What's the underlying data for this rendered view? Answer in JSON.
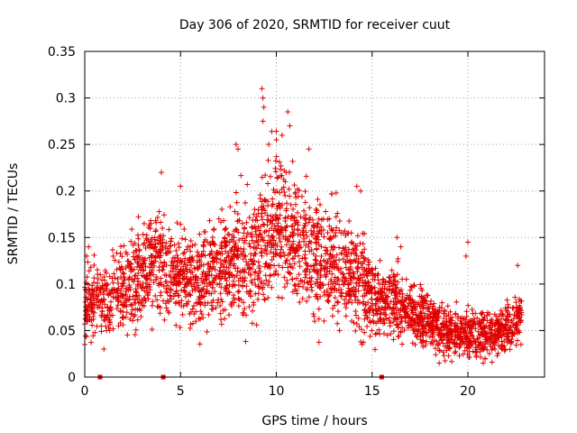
{
  "chart_data": {
    "type": "scatter",
    "title": "Day 306 of 2020, SRMTID for receiver cuut",
    "xlabel": "GPS time / hours",
    "ylabel": "SRMTID / TECUs",
    "xlim": [
      0,
      24
    ],
    "ylim": [
      0,
      0.35
    ],
    "grid": true,
    "marker": "+",
    "color": "#e00000",
    "x_ticks": [
      {
        "value": 0,
        "label": "0"
      },
      {
        "value": 5,
        "label": "5"
      },
      {
        "value": 10,
        "label": "10"
      },
      {
        "value": 15,
        "label": "15"
      },
      {
        "value": 20,
        "label": "20"
      }
    ],
    "y_ticks": [
      {
        "value": 0,
        "label": "0"
      },
      {
        "value": 0.05,
        "label": "0.05"
      },
      {
        "value": 0.1,
        "label": "0.1"
      },
      {
        "value": 0.15,
        "label": "0.15"
      },
      {
        "value": 0.2,
        "label": "0.2"
      },
      {
        "value": 0.25,
        "label": "0.25"
      },
      {
        "value": 0.3,
        "label": "0.3"
      },
      {
        "value": 0.35,
        "label": "0.35"
      }
    ],
    "baseline_markers": [
      0.8,
      4.1,
      15.5
    ],
    "envelope": {
      "hours": [
        0,
        0.5,
        1,
        1.5,
        2,
        2.5,
        3,
        3.5,
        4,
        4.5,
        5,
        5.5,
        6,
        6.5,
        7,
        7.5,
        8,
        8.5,
        9,
        9.5,
        10,
        10.5,
        11,
        11.5,
        12,
        12.5,
        13,
        13.5,
        14,
        14.5,
        15,
        15.5,
        16,
        16.5,
        17,
        17.5,
        18,
        18.5,
        19,
        19.5,
        20,
        20.5,
        21,
        21.5,
        22,
        22.5,
        22.8
      ],
      "center": [
        0.08,
        0.085,
        0.08,
        0.09,
        0.095,
        0.105,
        0.11,
        0.12,
        0.12,
        0.11,
        0.11,
        0.105,
        0.1,
        0.11,
        0.115,
        0.115,
        0.13,
        0.12,
        0.14,
        0.16,
        0.165,
        0.155,
        0.15,
        0.14,
        0.135,
        0.125,
        0.12,
        0.115,
        0.11,
        0.1,
        0.085,
        0.08,
        0.085,
        0.075,
        0.07,
        0.065,
        0.06,
        0.055,
        0.05,
        0.05,
        0.045,
        0.045,
        0.045,
        0.05,
        0.05,
        0.055,
        0.07
      ],
      "spread": [
        0.03,
        0.03,
        0.03,
        0.035,
        0.035,
        0.04,
        0.04,
        0.045,
        0.045,
        0.04,
        0.04,
        0.04,
        0.04,
        0.04,
        0.045,
        0.045,
        0.055,
        0.05,
        0.06,
        0.065,
        0.065,
        0.06,
        0.06,
        0.055,
        0.055,
        0.05,
        0.05,
        0.045,
        0.045,
        0.04,
        0.035,
        0.03,
        0.03,
        0.025,
        0.025,
        0.025,
        0.022,
        0.022,
        0.02,
        0.02,
        0.02,
        0.02,
        0.02,
        0.02,
        0.02,
        0.022,
        0.025
      ],
      "samples_per_hour": 130
    },
    "outliers": [
      {
        "x": 9.25,
        "y": 0.31
      },
      {
        "x": 9.3,
        "y": 0.3
      },
      {
        "x": 9.35,
        "y": 0.29
      },
      {
        "x": 9.3,
        "y": 0.275
      },
      {
        "x": 10.6,
        "y": 0.285
      },
      {
        "x": 10.7,
        "y": 0.27
      },
      {
        "x": 10.3,
        "y": 0.26
      },
      {
        "x": 10.0,
        "y": 0.255
      },
      {
        "x": 7.9,
        "y": 0.25
      },
      {
        "x": 8.0,
        "y": 0.245
      },
      {
        "x": 4.0,
        "y": 0.22
      },
      {
        "x": 11.7,
        "y": 0.245
      },
      {
        "x": 20.0,
        "y": 0.145
      },
      {
        "x": 19.9,
        "y": 0.13
      },
      {
        "x": 22.6,
        "y": 0.12
      },
      {
        "x": 3.1,
        "y": 0.165
      },
      {
        "x": 5.0,
        "y": 0.205
      },
      {
        "x": 14.2,
        "y": 0.205
      },
      {
        "x": 14.4,
        "y": 0.2
      },
      {
        "x": 7.0,
        "y": 0.17
      },
      {
        "x": 16.3,
        "y": 0.15
      },
      {
        "x": 16.5,
        "y": 0.14
      },
      {
        "x": 18.5,
        "y": 0.015
      },
      {
        "x": 20.8,
        "y": 0.015
      },
      {
        "x": 20.9,
        "y": 0.02
      },
      {
        "x": 1.0,
        "y": 0.03
      },
      {
        "x": 0.0,
        "y": 0.035
      },
      {
        "x": 0.1,
        "y": 0.13
      },
      {
        "x": 0.2,
        "y": 0.14
      },
      {
        "x": 1.3,
        "y": 0.05
      },
      {
        "x": 12.0,
        "y": 0.06
      },
      {
        "x": 13.3,
        "y": 0.05
      },
      {
        "x": 15.8,
        "y": 0.045
      }
    ]
  }
}
